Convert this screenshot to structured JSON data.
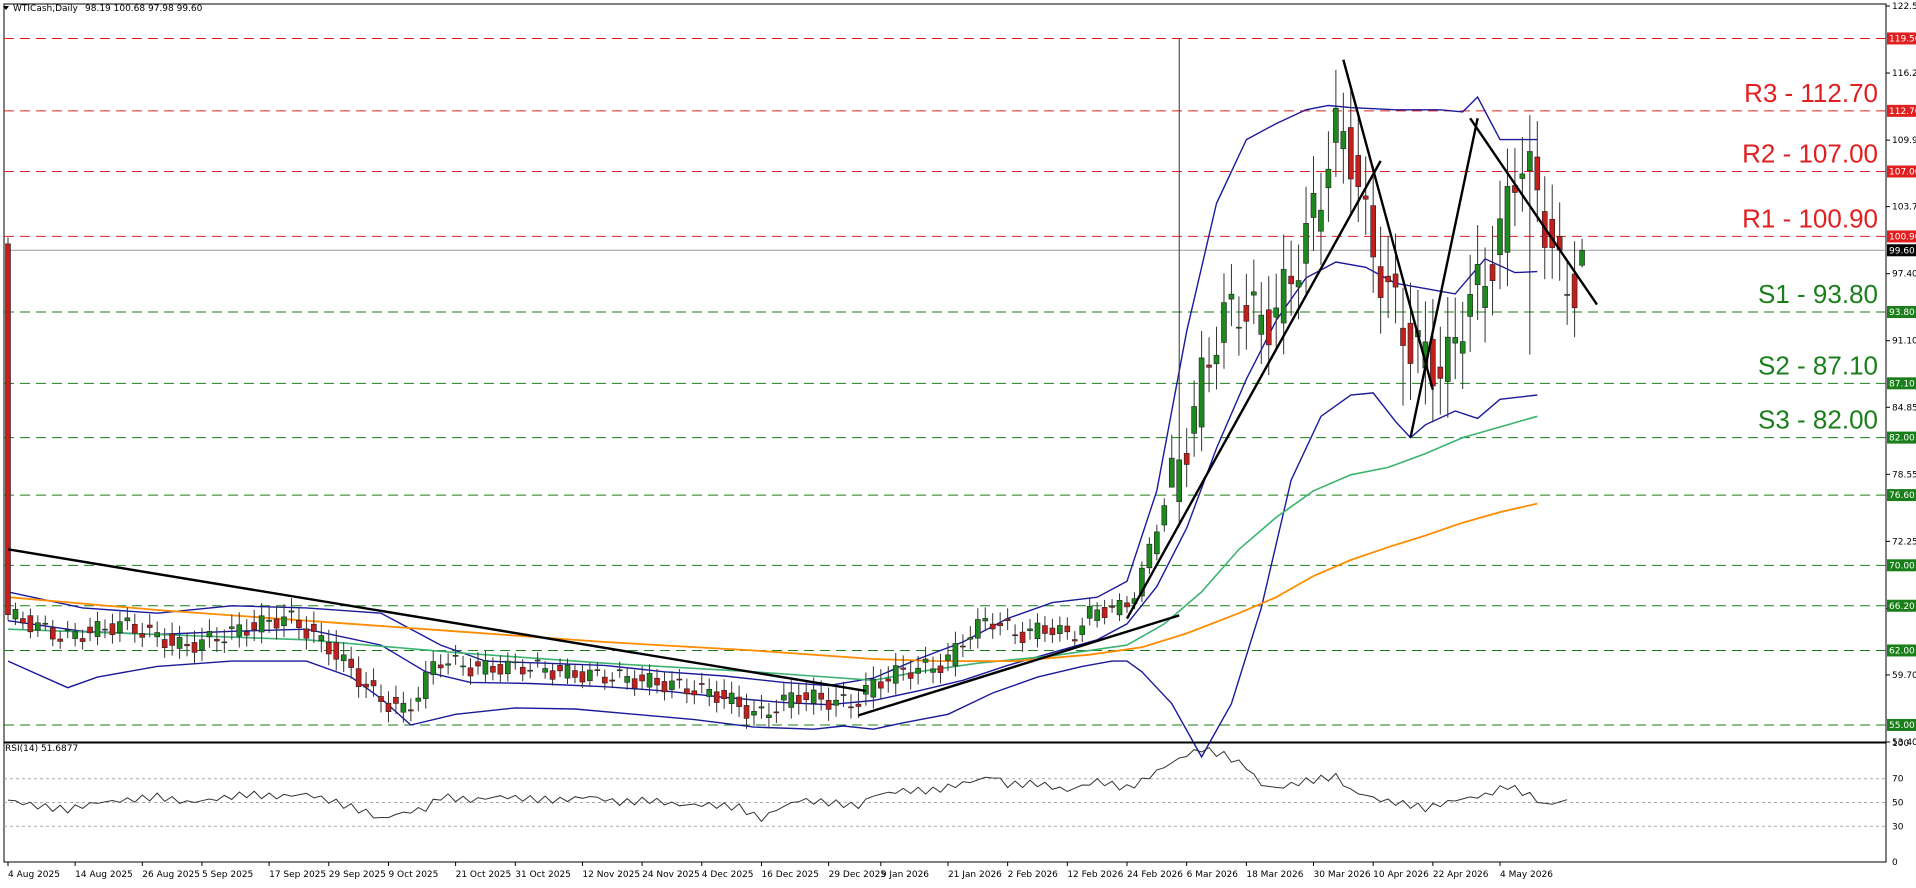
{
  "chart_data": {
    "type": "candlestick",
    "symbol_header": {
      "title": "WTICash,Daily",
      "ohlc": "98.19 100.68 97.98 99.60"
    },
    "price_axis": {
      "ylim": [
        53.4,
        122.55
      ],
      "ticks": [
        "122.55",
        "116.25",
        "109.95",
        "103.70",
        "97.40",
        "91.10",
        "84.85",
        "78.55",
        "72.25",
        "65.95",
        "59.70",
        "53.40"
      ]
    },
    "x_ticks": [
      {
        "i": 0,
        "label": "4 Aug 2025"
      },
      {
        "i": 9,
        "label": "14 Aug 2025"
      },
      {
        "i": 18,
        "label": "26 Aug 2025"
      },
      {
        "i": 26,
        "label": "5 Sep 2025"
      },
      {
        "i": 35,
        "label": "17 Sep 2025"
      },
      {
        "i": 43,
        "label": "29 Sep 2025"
      },
      {
        "i": 51,
        "label": "9 Oct 2025"
      },
      {
        "i": 60,
        "label": "21 Oct 2025"
      },
      {
        "i": 68,
        "label": "31 Oct 2025"
      },
      {
        "i": 77,
        "label": "12 Nov 2025"
      },
      {
        "i": 85,
        "label": "24 Nov 2025"
      },
      {
        "i": 93,
        "label": "4 Dec 2025"
      },
      {
        "i": 101,
        "label": "16 Dec 2025"
      },
      {
        "i": 110,
        "label": "29 Dec 2025"
      },
      {
        "i": 117,
        "label": "9 Jan 2026"
      },
      {
        "i": 126,
        "label": "21 Jan 2026"
      },
      {
        "i": 134,
        "label": "2 Feb 2026"
      },
      {
        "i": 142,
        "label": "12 Feb 2026"
      },
      {
        "i": 150,
        "label": "24 Feb 2026"
      },
      {
        "i": 158,
        "label": "6 Mar 2026"
      },
      {
        "i": 166,
        "label": "18 Mar 2026"
      },
      {
        "i": 175,
        "label": "30 Mar 2026"
      },
      {
        "i": 183,
        "label": "10 Apr 2026"
      },
      {
        "i": 191,
        "label": "22 Apr 2026"
      },
      {
        "i": 200,
        "label": "4 May 2026"
      }
    ],
    "levels": [
      {
        "value": 119.5,
        "label": "119.50",
        "kind": "resistance"
      },
      {
        "value": 112.7,
        "label": "112.70",
        "kind": "resistance",
        "text": "R3 - 112.70"
      },
      {
        "value": 107.0,
        "label": "107.00",
        "kind": "resistance",
        "text": "R2 - 107.00"
      },
      {
        "value": 100.9,
        "label": "100.90",
        "kind": "resistance",
        "text": "R1 - 100.90"
      },
      {
        "value": 93.8,
        "label": "93.80",
        "kind": "support",
        "text": "S1 - 93.80"
      },
      {
        "value": 87.1,
        "label": "87.10",
        "kind": "support",
        "text": "S2 - 87.10"
      },
      {
        "value": 82.0,
        "label": "82.00",
        "kind": "support",
        "text": "S3 - 82.00"
      },
      {
        "value": 76.6,
        "label": "76.60",
        "kind": "support"
      },
      {
        "value": 70.0,
        "label": "70.00",
        "kind": "support"
      },
      {
        "value": 66.2,
        "label": "66.20",
        "kind": "support"
      },
      {
        "value": 62.0,
        "label": "62.00",
        "kind": "support"
      },
      {
        "value": 55.0,
        "label": "55.00",
        "kind": "support"
      }
    ],
    "current_price": {
      "value": 99.6,
      "label": "99.60"
    },
    "anchors": [
      [
        0,
        65.5
      ],
      [
        8,
        63.2
      ],
      [
        16,
        64.5
      ],
      [
        24,
        62.3
      ],
      [
        32,
        64.0
      ],
      [
        38,
        65.2
      ],
      [
        44,
        62.0
      ],
      [
        50,
        57.5
      ],
      [
        54,
        56.2
      ],
      [
        58,
        61.2
      ],
      [
        63,
        60.3
      ],
      [
        70,
        60.5
      ],
      [
        76,
        59.8
      ],
      [
        82,
        59.5
      ],
      [
        90,
        58.7
      ],
      [
        96,
        57.8
      ],
      [
        101,
        55.8
      ],
      [
        106,
        57.8
      ],
      [
        111,
        57.2
      ],
      [
        114,
        57.0
      ],
      [
        116,
        58.6
      ],
      [
        120,
        60.0
      ],
      [
        126,
        60.7
      ],
      [
        129,
        63.4
      ],
      [
        132,
        65.0
      ],
      [
        136,
        63.4
      ],
      [
        140,
        64.2
      ],
      [
        143,
        63.2
      ],
      [
        146,
        65.8
      ],
      [
        150,
        66.0
      ],
      [
        152,
        68.0
      ],
      [
        155,
        75.0
      ],
      [
        158,
        80.5
      ],
      [
        160,
        86.0
      ],
      [
        163,
        93.0
      ],
      [
        166,
        94.5
      ],
      [
        169,
        92.5
      ],
      [
        172,
        96.0
      ],
      [
        175,
        102.0
      ],
      [
        177,
        106.0
      ],
      [
        178,
        111.5
      ],
      [
        181,
        108.0
      ],
      [
        183,
        100.0
      ],
      [
        186,
        95.0
      ],
      [
        188,
        91.0
      ],
      [
        190,
        90.0
      ],
      [
        193,
        88.0
      ],
      [
        196,
        94.5
      ],
      [
        198,
        96.5
      ],
      [
        200,
        99.5
      ],
      [
        203,
        108.5
      ],
      [
        205,
        106.0
      ],
      [
        207,
        101.0
      ],
      [
        209,
        96.0
      ],
      [
        211,
        96.5
      ],
      [
        212,
        99.6
      ]
    ],
    "spikes": [
      {
        "i": 157,
        "high": 119.5
      },
      {
        "i": 156,
        "low": 77.5
      },
      {
        "i": 204,
        "low": 89.8
      },
      {
        "i": 187,
        "low": 85.0
      }
    ],
    "bollinger": {
      "upper": [
        [
          0,
          67.5
        ],
        [
          10,
          66.0
        ],
        [
          20,
          65.5
        ],
        [
          30,
          66.2
        ],
        [
          40,
          66.0
        ],
        [
          50,
          65.5
        ],
        [
          58,
          62.5
        ],
        [
          64,
          61.0
        ],
        [
          72,
          60.8
        ],
        [
          80,
          60.6
        ],
        [
          88,
          60.0
        ],
        [
          96,
          59.6
        ],
        [
          104,
          59.0
        ],
        [
          110,
          58.7
        ],
        [
          116,
          59.4
        ],
        [
          122,
          61.2
        ],
        [
          128,
          62.8
        ],
        [
          134,
          65.0
        ],
        [
          140,
          66.5
        ],
        [
          146,
          67.0
        ],
        [
          150,
          68.5
        ],
        [
          154,
          77.0
        ],
        [
          158,
          92.0
        ],
        [
          162,
          104.0
        ],
        [
          166,
          110.0
        ],
        [
          170,
          111.5
        ],
        [
          174,
          112.8
        ],
        [
          177,
          113.2
        ],
        [
          180,
          113.0
        ],
        [
          186,
          112.8
        ],
        [
          192,
          112.8
        ],
        [
          195,
          112.6
        ],
        [
          197,
          114.0
        ],
        [
          200,
          110.0
        ],
        [
          205,
          110.0
        ]
      ],
      "middle": [
        [
          0,
          64.8
        ],
        [
          10,
          63.8
        ],
        [
          20,
          63.5
        ],
        [
          30,
          63.8
        ],
        [
          40,
          64.0
        ],
        [
          50,
          62.5
        ],
        [
          56,
          60.0
        ],
        [
          62,
          59.0
        ],
        [
          70,
          58.9
        ],
        [
          80,
          58.6
        ],
        [
          88,
          58.2
        ],
        [
          96,
          57.6
        ],
        [
          104,
          57.1
        ],
        [
          110,
          56.9
        ],
        [
          116,
          57.3
        ],
        [
          122,
          58.2
        ],
        [
          128,
          59.2
        ],
        [
          134,
          60.6
        ],
        [
          140,
          61.8
        ],
        [
          146,
          63.0
        ],
        [
          150,
          64.5
        ],
        [
          154,
          68.0
        ],
        [
          158,
          73.5
        ],
        [
          162,
          81.0
        ],
        [
          166,
          87.5
        ],
        [
          170,
          93.0
        ],
        [
          174,
          97.0
        ],
        [
          178,
          98.5
        ],
        [
          182,
          98.0
        ],
        [
          186,
          96.5
        ],
        [
          190,
          96.0
        ],
        [
          194,
          95.5
        ],
        [
          198,
          98.8
        ],
        [
          202,
          97.5
        ],
        [
          205,
          97.6
        ]
      ],
      "lower": [
        [
          0,
          61.0
        ],
        [
          8,
          58.5
        ],
        [
          12,
          59.5
        ],
        [
          20,
          60.5
        ],
        [
          30,
          61.0
        ],
        [
          40,
          61.0
        ],
        [
          46,
          59.5
        ],
        [
          50,
          57.5
        ],
        [
          54,
          55.0
        ],
        [
          60,
          56.0
        ],
        [
          68,
          56.6
        ],
        [
          76,
          56.5
        ],
        [
          84,
          56.0
        ],
        [
          92,
          55.5
        ],
        [
          100,
          54.8
        ],
        [
          108,
          54.6
        ],
        [
          112,
          54.9
        ],
        [
          116,
          54.6
        ],
        [
          120,
          55.2
        ],
        [
          126,
          56.0
        ],
        [
          132,
          58.0
        ],
        [
          138,
          59.5
        ],
        [
          144,
          60.5
        ],
        [
          148,
          61.0
        ],
        [
          150,
          61.0
        ],
        [
          152,
          60.0
        ],
        [
          156,
          57.0
        ],
        [
          160,
          52.0
        ],
        [
          164,
          57.0
        ],
        [
          168,
          66.0
        ],
        [
          172,
          78.0
        ],
        [
          176,
          84.0
        ],
        [
          180,
          86.0
        ],
        [
          183,
          86.2
        ],
        [
          186,
          83.5
        ],
        [
          188,
          82.0
        ],
        [
          190,
          83.2
        ],
        [
          194,
          84.5
        ],
        [
          197,
          83.8
        ],
        [
          200,
          85.6
        ],
        [
          205,
          86.0
        ]
      ]
    },
    "ma_fast": {
      "name": "",
      "color": "#3cb371",
      "points": [
        [
          0,
          64.0
        ],
        [
          20,
          63.5
        ],
        [
          40,
          63.0
        ],
        [
          60,
          61.8
        ],
        [
          80,
          60.8
        ],
        [
          100,
          60.0
        ],
        [
          116,
          59.2
        ],
        [
          122,
          60.0
        ],
        [
          130,
          60.8
        ],
        [
          140,
          61.5
        ],
        [
          150,
          62.5
        ],
        [
          155,
          64.5
        ],
        [
          160,
          67.5
        ],
        [
          165,
          71.5
        ],
        [
          170,
          74.5
        ],
        [
          175,
          77.0
        ],
        [
          180,
          78.5
        ],
        [
          185,
          79.2
        ],
        [
          190,
          80.5
        ],
        [
          195,
          82.0
        ],
        [
          200,
          83.0
        ],
        [
          205,
          84.0
        ]
      ]
    },
    "ma_slow": {
      "name": "",
      "color": "#ff8c00",
      "points": [
        [
          0,
          67.0
        ],
        [
          20,
          65.8
        ],
        [
          40,
          64.8
        ],
        [
          60,
          63.8
        ],
        [
          80,
          62.8
        ],
        [
          100,
          62.0
        ],
        [
          116,
          61.2
        ],
        [
          125,
          61.0
        ],
        [
          135,
          61.0
        ],
        [
          145,
          61.6
        ],
        [
          152,
          62.3
        ],
        [
          158,
          63.6
        ],
        [
          165,
          65.5
        ],
        [
          170,
          67.0
        ],
        [
          175,
          69.0
        ],
        [
          180,
          70.5
        ],
        [
          185,
          71.7
        ],
        [
          190,
          72.8
        ],
        [
          195,
          74.0
        ],
        [
          200,
          75.0
        ],
        [
          205,
          75.8
        ]
      ]
    },
    "trendlines": [
      {
        "from": [
          0,
          71.5
        ],
        "to": [
          115,
          58.2
        ]
      },
      {
        "from": [
          114,
          55.9
        ],
        "to": [
          157,
          65.3
        ]
      },
      {
        "from": [
          150,
          65.0
        ],
        "to": [
          184,
          108.0
        ]
      },
      {
        "from": [
          179,
          117.5
        ],
        "to": [
          191,
          86.5
        ]
      },
      {
        "from": [
          188,
          82.0
        ],
        "to": [
          197,
          112.0
        ]
      },
      {
        "from": [
          196,
          112.0
        ],
        "to": [
          213,
          94.5
        ]
      }
    ],
    "rsi": {
      "title": "RSI(14) 51.6877",
      "ylim": [
        0,
        100
      ],
      "ticks": [
        "100",
        "70",
        "50",
        "30",
        "0"
      ],
      "levels": [
        70,
        50,
        30
      ],
      "anchors": [
        [
          0,
          52
        ],
        [
          4,
          47
        ],
        [
          8,
          44
        ],
        [
          12,
          50
        ],
        [
          16,
          52
        ],
        [
          20,
          55
        ],
        [
          24,
          50
        ],
        [
          28,
          53
        ],
        [
          32,
          57
        ],
        [
          36,
          55
        ],
        [
          40,
          57
        ],
        [
          44,
          50
        ],
        [
          48,
          42
        ],
        [
          50,
          36
        ],
        [
          52,
          40
        ],
        [
          56,
          45
        ],
        [
          58,
          55
        ],
        [
          62,
          52
        ],
        [
          66,
          55
        ],
        [
          70,
          53
        ],
        [
          74,
          52
        ],
        [
          78,
          55
        ],
        [
          82,
          50
        ],
        [
          86,
          52
        ],
        [
          90,
          48
        ],
        [
          94,
          48
        ],
        [
          98,
          46
        ],
        [
          101,
          36
        ],
        [
          103,
          44
        ],
        [
          106,
          52
        ],
        [
          110,
          50
        ],
        [
          114,
          47
        ],
        [
          116,
          56
        ],
        [
          120,
          60
        ],
        [
          124,
          60
        ],
        [
          128,
          66
        ],
        [
          132,
          72
        ],
        [
          134,
          65
        ],
        [
          138,
          66
        ],
        [
          142,
          60
        ],
        [
          146,
          68
        ],
        [
          150,
          62
        ],
        [
          152,
          68
        ],
        [
          155,
          80
        ],
        [
          158,
          90
        ],
        [
          160,
          95
        ],
        [
          163,
          90
        ],
        [
          166,
          80
        ],
        [
          168,
          65
        ],
        [
          170,
          62
        ],
        [
          174,
          68
        ],
        [
          178,
          72
        ],
        [
          180,
          60
        ],
        [
          184,
          52
        ],
        [
          188,
          48
        ],
        [
          190,
          45
        ],
        [
          194,
          52
        ],
        [
          198,
          56
        ],
        [
          201,
          64
        ],
        [
          204,
          56
        ],
        [
          206,
          48
        ],
        [
          209,
          51.7
        ]
      ]
    }
  }
}
